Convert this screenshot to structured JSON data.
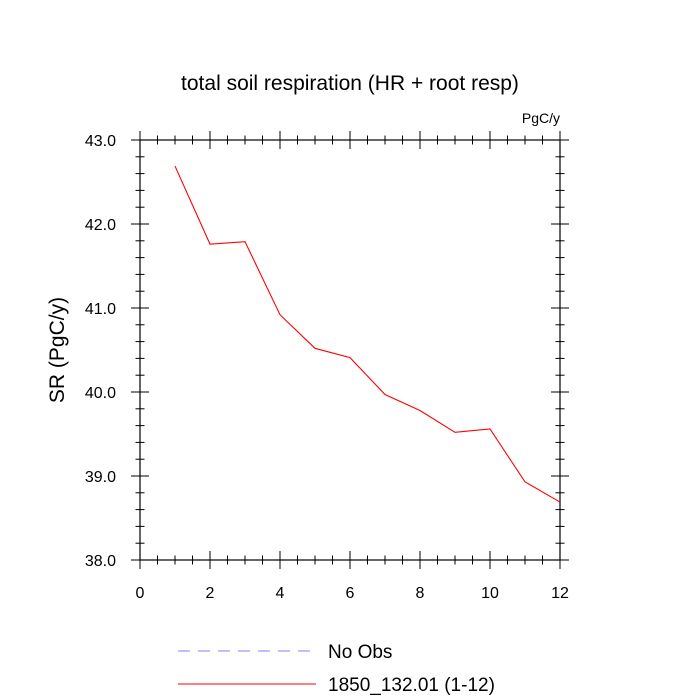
{
  "chart_data": {
    "type": "line",
    "title": "total soil respiration (HR + root resp)",
    "units_label": "PgC/y",
    "ylabel": "SR  (PgC/y)",
    "xlabel": "",
    "xlim": [
      0,
      12
    ],
    "ylim": [
      38,
      43
    ],
    "x_ticks": [
      0,
      2,
      4,
      6,
      8,
      10,
      12
    ],
    "x_tick_labels": [
      "0",
      "2",
      "4",
      "6",
      "8",
      "10",
      "12"
    ],
    "y_ticks": [
      38,
      39,
      40,
      41,
      42,
      43
    ],
    "y_tick_labels": [
      "38.0",
      "39.0",
      "40.0",
      "41.0",
      "42.0",
      "43.0"
    ],
    "grid": false,
    "legend_position": "bottom",
    "series": [
      {
        "name": "No Obs",
        "color": "#8080ff",
        "dash": "dashed",
        "x": [],
        "y": []
      },
      {
        "name": "1850_132.01 (1-12)",
        "color": "#ff0000",
        "dash": "solid",
        "x": [
          1,
          2,
          3,
          4,
          5,
          6,
          7,
          8,
          9,
          10,
          11,
          12
        ],
        "y": [
          42.69,
          41.76,
          41.79,
          40.92,
          40.52,
          40.41,
          39.97,
          39.78,
          39.52,
          39.56,
          38.93,
          38.69
        ]
      }
    ]
  }
}
